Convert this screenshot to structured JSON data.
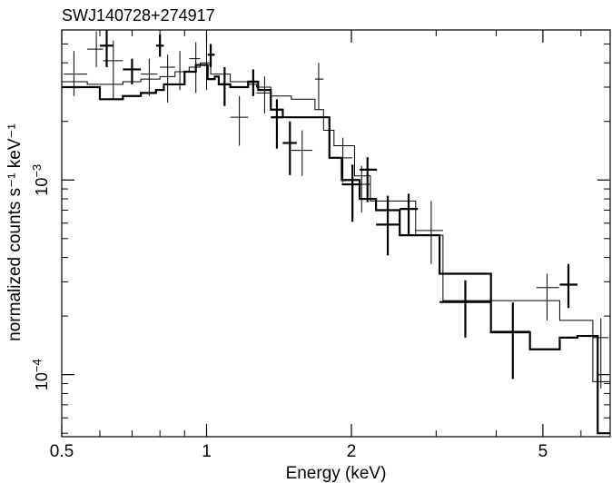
{
  "chart_data": {
    "type": "scatter",
    "title": "SWJ140728+274917",
    "xlabel": "Energy (keV)",
    "ylabel": "normalized counts s⁻¹ keV⁻¹",
    "xscale": "log",
    "yscale": "log",
    "xlim": [
      0.5,
      6.9
    ],
    "ylim": [
      4.8e-05,
      0.0059
    ],
    "x_ticks": [
      {
        "value": 0.5,
        "label": "0.5"
      },
      {
        "value": 1,
        "label": "1"
      },
      {
        "value": 2,
        "label": "2"
      },
      {
        "value": 5,
        "label": "5"
      }
    ],
    "y_ticks": [
      {
        "value": 0.001,
        "base": "10",
        "exp": "−3"
      },
      {
        "value": 0.0001,
        "base": "10",
        "exp": "−4"
      }
    ],
    "grid": false,
    "legend": "none",
    "series": [
      {
        "style": "thin-crosses",
        "points": [
          {
            "x": 0.53,
            "xlo": 0.505,
            "xhi": 0.565,
            "y": 0.0035,
            "ylo": 0.0027,
            "yhi": 0.0046
          },
          {
            "x": 0.59,
            "xlo": 0.565,
            "xhi": 0.61,
            "y": 0.0047,
            "ylo": 0.0038,
            "yhi": 0.0058
          },
          {
            "x": 0.64,
            "xlo": 0.61,
            "xhi": 0.67,
            "y": 0.0041,
            "ylo": 0.0026,
            "yhi": 0.0052
          },
          {
            "x": 0.76,
            "xlo": 0.73,
            "xhi": 0.79,
            "y": 0.0035,
            "ylo": 0.0027,
            "yhi": 0.0042
          },
          {
            "x": 0.83,
            "xlo": 0.8,
            "xhi": 0.86,
            "y": 0.0038,
            "ylo": 0.0025,
            "yhi": 0.0044
          },
          {
            "x": 0.88,
            "xlo": 0.86,
            "xhi": 0.92,
            "y": 0.0036,
            "ylo": 0.0029,
            "yhi": 0.0046
          },
          {
            "x": 0.95,
            "xlo": 0.92,
            "xhi": 0.97,
            "y": 0.0042,
            "ylo": 0.0028,
            "yhi": 0.0051
          },
          {
            "x": 1.0,
            "xlo": 0.98,
            "xhi": 1.02,
            "y": 0.0039,
            "ylo": 0.0029,
            "yhi": 0.0052
          },
          {
            "x": 1.17,
            "xlo": 1.12,
            "xhi": 1.22,
            "y": 0.0021,
            "ylo": 0.0015,
            "yhi": 0.0027
          },
          {
            "x": 1.32,
            "xlo": 1.27,
            "xhi": 1.36,
            "y": 0.0028,
            "ylo": 0.0022,
            "yhi": 0.0034
          },
          {
            "x": 1.58,
            "xlo": 1.5,
            "xhi": 1.66,
            "y": 0.00142,
            "ylo": 0.00105,
            "yhi": 0.0018
          },
          {
            "x": 1.71,
            "xlo": 1.68,
            "xhi": 1.75,
            "y": 0.0033,
            "ylo": 0.0023,
            "yhi": 0.004
          },
          {
            "x": 1.92,
            "xlo": 1.84,
            "xhi": 2.01,
            "y": 0.0013,
            "ylo": 0.00097,
            "yhi": 0.00165
          },
          {
            "x": 2.1,
            "xlo": 2.03,
            "xhi": 2.19,
            "y": 0.00095,
            "ylo": 0.00068,
            "yhi": 0.00118
          },
          {
            "x": 2.93,
            "xlo": 2.72,
            "xhi": 3.1,
            "y": 0.00055,
            "ylo": 0.00037,
            "yhi": 0.00078
          },
          {
            "x": 5.1,
            "xlo": 4.85,
            "xhi": 5.4,
            "y": 0.00028,
            "ylo": 0.00019,
            "yhi": 0.00033
          },
          {
            "x": 6.6,
            "xlo": 6.35,
            "xhi": 6.85,
            "y": 0.000155,
            "ylo": 8.5e-05,
            "yhi": 0.000195
          }
        ]
      },
      {
        "style": "thick-crosses",
        "points": [
          {
            "x": 0.62,
            "xlo": 0.6,
            "xhi": 0.64,
            "y": 0.0049,
            "ylo": 0.0038,
            "yhi": 0.006
          },
          {
            "x": 0.7,
            "xlo": 0.67,
            "xhi": 0.73,
            "y": 0.0037,
            "ylo": 0.0031,
            "yhi": 0.0042
          },
          {
            "x": 0.8,
            "xlo": 0.785,
            "xhi": 0.815,
            "y": 0.0049,
            "ylo": 0.0043,
            "yhi": 0.0056
          },
          {
            "x": 1.02,
            "xlo": 1.005,
            "xhi": 1.04,
            "y": 0.0044,
            "ylo": 0.0038,
            "yhi": 0.005
          },
          {
            "x": 1.09,
            "xlo": 1.06,
            "xhi": 1.12,
            "y": 0.0031,
            "ylo": 0.0024,
            "yhi": 0.0038
          },
          {
            "x": 1.25,
            "xlo": 1.22,
            "xhi": 1.28,
            "y": 0.0032,
            "ylo": 0.0027,
            "yhi": 0.0037
          },
          {
            "x": 1.4,
            "xlo": 1.36,
            "xhi": 1.44,
            "y": 0.0021,
            "ylo": 0.00145,
            "yhi": 0.0026
          },
          {
            "x": 1.49,
            "xlo": 1.44,
            "xhi": 1.54,
            "y": 0.00155,
            "ylo": 0.00106,
            "yhi": 0.002
          },
          {
            "x": 2.01,
            "xlo": 1.91,
            "xhi": 2.09,
            "y": 0.00095,
            "ylo": 0.00061,
            "yhi": 0.0012
          },
          {
            "x": 2.16,
            "xlo": 2.08,
            "xhi": 2.26,
            "y": 0.00113,
            "ylo": 0.00077,
            "yhi": 0.00131
          },
          {
            "x": 2.38,
            "xlo": 2.25,
            "xhi": 2.51,
            "y": 0.00059,
            "ylo": 0.00041,
            "yhi": 0.00083
          },
          {
            "x": 2.63,
            "xlo": 2.52,
            "xhi": 2.75,
            "y": 0.00071,
            "ylo": 0.00052,
            "yhi": 0.00085
          },
          {
            "x": 3.45,
            "xlo": 3.05,
            "xhi": 3.9,
            "y": 0.000236,
            "ylo": 0.000155,
            "yhi": 0.000305
          },
          {
            "x": 4.33,
            "xlo": 3.93,
            "xhi": 4.7,
            "y": 0.000166,
            "ylo": 9.5e-05,
            "yhi": 0.000235
          },
          {
            "x": 5.65,
            "xlo": 5.42,
            "xhi": 5.9,
            "y": 0.00029,
            "ylo": 0.00022,
            "yhi": 0.00037
          }
        ]
      },
      {
        "style": "thin-model-step",
        "edges": [
          0.5,
          0.565,
          0.61,
          0.67,
          0.73,
          0.8,
          0.86,
          0.92,
          0.97,
          0.99,
          1.02,
          1.12,
          1.22,
          1.27,
          1.36,
          1.5,
          1.68,
          1.75,
          1.84,
          2.03,
          2.19,
          2.72,
          3.1,
          4.85,
          5.42,
          6.35,
          6.9
        ],
        "values": [
          0.0032,
          0.0031,
          0.0031,
          0.0032,
          0.0033,
          0.0034,
          0.0036,
          0.0038,
          0.004,
          0.004,
          0.0035,
          0.0032,
          0.0031,
          0.003,
          0.0027,
          0.0026,
          0.0023,
          0.0018,
          0.0015,
          0.00105,
          0.00078,
          0.00052,
          0.00024,
          0.00024,
          0.00019,
          9.2e-05
        ]
      },
      {
        "style": "thick-model-step",
        "edges": [
          0.5,
          0.6,
          0.64,
          0.67,
          0.73,
          0.785,
          0.815,
          0.9,
          0.95,
          1.005,
          1.04,
          1.06,
          1.12,
          1.22,
          1.28,
          1.36,
          1.44,
          1.54,
          1.8,
          1.91,
          2.08,
          2.25,
          2.52,
          3.05,
          3.9,
          4.7,
          5.42,
          5.9,
          6.5,
          6.9
        ],
        "values": [
          0.003,
          0.0026,
          0.0026,
          0.0027,
          0.0028,
          0.0029,
          0.0031,
          0.0036,
          0.0039,
          0.0033,
          0.0034,
          0.0031,
          0.003,
          0.0032,
          0.0029,
          0.0023,
          0.0021,
          0.0021,
          0.0013,
          0.001,
          0.0008,
          0.0007,
          0.00052,
          0.00033,
          0.000165,
          0.000135,
          0.000155,
          0.000158,
          5e-05
        ]
      }
    ]
  }
}
